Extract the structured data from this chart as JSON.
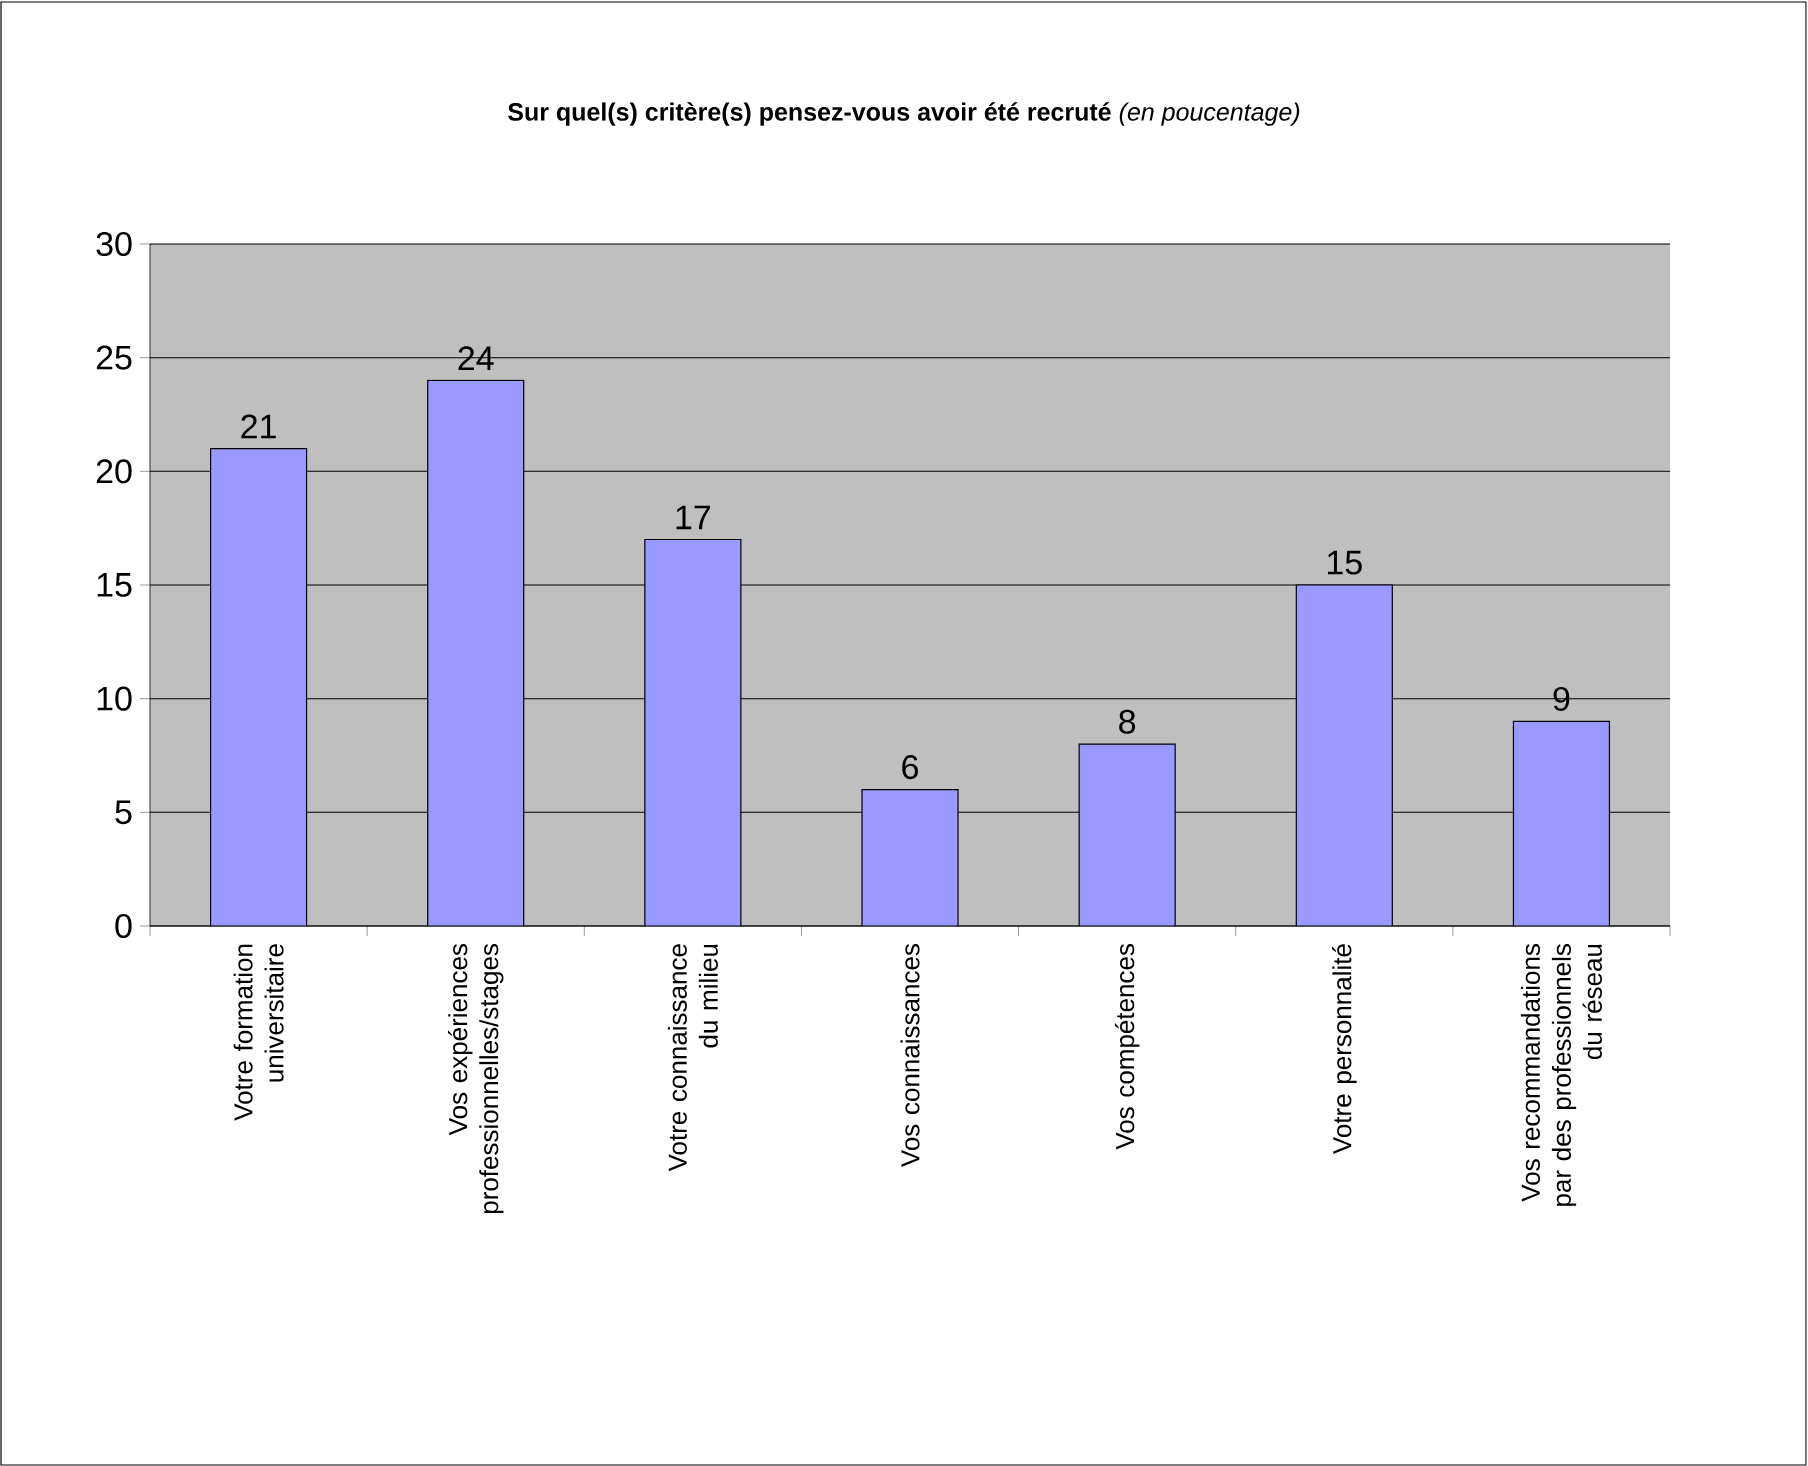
{
  "chart_data": {
    "type": "bar",
    "title": "**Sur quel(s) critère(s) pensez-vous avoir été recruté** *(en poucentage)*",
    "categories": [
      "Votre formation universitaire",
      "Vos expériences professionnelles/stages",
      "Votre connaissance du milieu",
      "Vos connaissances",
      "Vos compétences",
      "Votre personnalité",
      "Vos recommandations par des professionnels du réseau"
    ],
    "values": [
      21,
      24,
      17,
      6,
      8,
      15,
      9
    ],
    "color": "#9999ff",
    "ylim": [
      0,
      30
    ],
    "yticks": [
      0,
      5,
      10,
      15,
      20,
      25,
      30
    ],
    "grid": "y",
    "data_labels": true
  }
}
